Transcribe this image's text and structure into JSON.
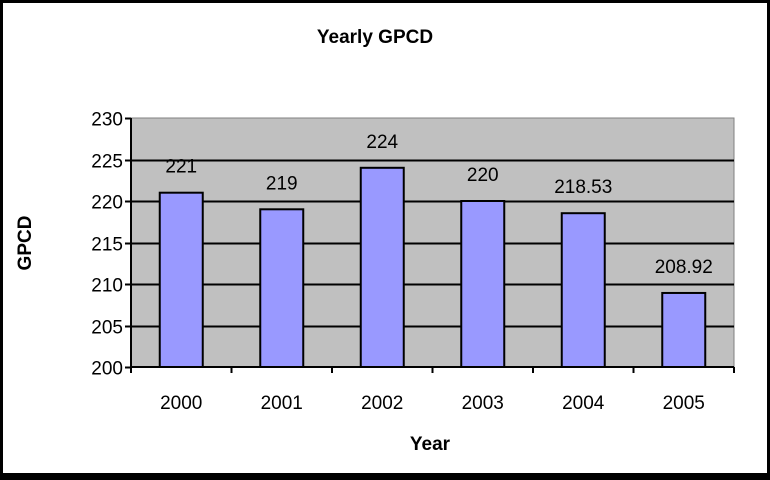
{
  "chart_data": {
    "type": "bar",
    "title": "Yearly GPCD",
    "xlabel": "Year",
    "ylabel": "GPCD",
    "categories": [
      "2000",
      "2001",
      "2002",
      "2003",
      "2004",
      "2005"
    ],
    "values": [
      221,
      219,
      224,
      220,
      218.53,
      208.92
    ],
    "data_labels": [
      "221",
      "219",
      "224",
      "220",
      "218.53",
      "208.92"
    ],
    "ylim": [
      200,
      230
    ],
    "yticks": [
      200,
      205,
      210,
      215,
      220,
      225,
      230
    ],
    "grid": true,
    "legend": null,
    "colors": {
      "bar": "#9999ff",
      "plot_bg": "#c0c0c0",
      "outline": "#000000"
    }
  }
}
